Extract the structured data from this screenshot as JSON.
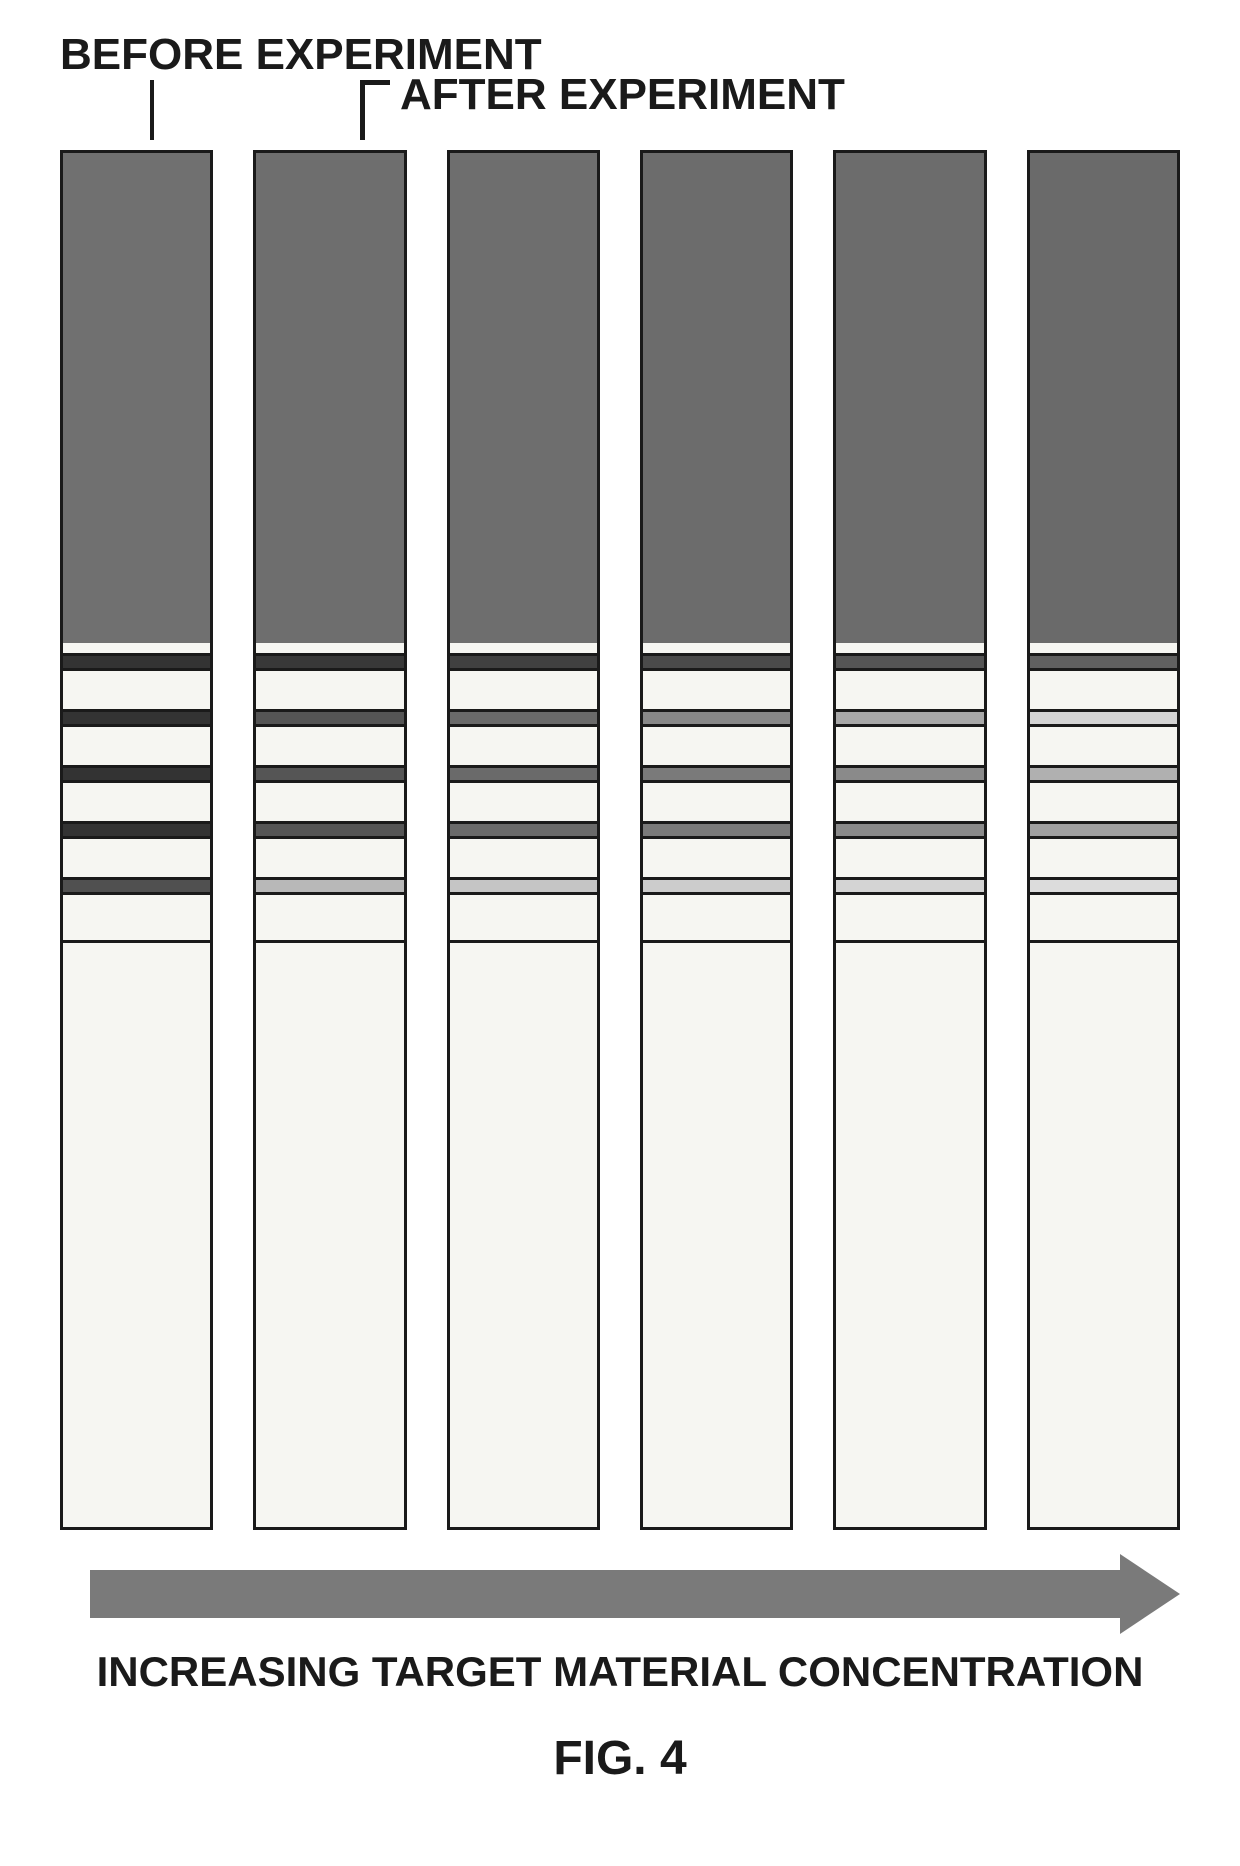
{
  "labels": {
    "before": "BEFORE EXPERIMENT",
    "after": "AFTER EXPERIMENT",
    "bottom": "INCREASING TARGET MATERIAL CONCENTRATION",
    "figure": "FIG. 4"
  },
  "layout": {
    "strip_count": 6,
    "strip_width": 160,
    "strip_height": 1380,
    "strip_gap": 40,
    "top_pad_height": 490,
    "band_area_height": 300,
    "band_thickness": 18,
    "gap_thickness": 38
  },
  "colors": {
    "border": "#1a1a1a",
    "strip_bg": "#f6f6f2",
    "arrow": "#7a7a7a",
    "text": "#1a1a1a"
  },
  "strips": [
    {
      "top_color": "#707070",
      "bands": [
        "#333333",
        "#333333",
        "#333333",
        "#333333",
        "#505050"
      ]
    },
    {
      "top_color": "#6e6e6e",
      "bands": [
        "#383838",
        "#555555",
        "#555555",
        "#555555",
        "#b8b8b8"
      ]
    },
    {
      "top_color": "#6e6e6e",
      "bands": [
        "#404040",
        "#6a6a6a",
        "#6a6a6a",
        "#6a6a6a",
        "#c5c5c5"
      ]
    },
    {
      "top_color": "#6c6c6c",
      "bands": [
        "#4a4a4a",
        "#888888",
        "#7a7a7a",
        "#7a7a7a",
        "#cccccc"
      ]
    },
    {
      "top_color": "#6c6c6c",
      "bands": [
        "#555555",
        "#a8a8a8",
        "#8a8a8a",
        "#8a8a8a",
        "#d4d4d4"
      ]
    },
    {
      "top_color": "#6a6a6a",
      "bands": [
        "#606060",
        "#d4d4d4",
        "#b0b0b0",
        "#a0a0a0",
        "#dcdcdc"
      ]
    }
  ]
}
